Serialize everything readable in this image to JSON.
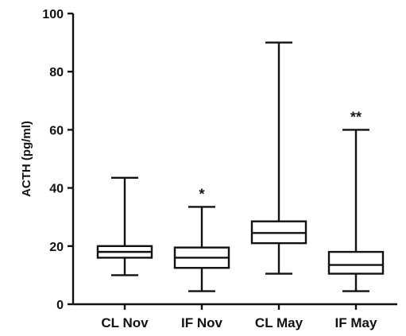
{
  "chart_data": {
    "type": "box",
    "title": "",
    "xlabel": "",
    "ylabel": "ACTH (pg/ml)",
    "ylim": [
      0,
      100
    ],
    "yticks": [
      0,
      20,
      40,
      60,
      80,
      100
    ],
    "grid": false,
    "categories": [
      "CL Nov",
      "IF Nov",
      "CL May",
      "IF May"
    ],
    "boxes": [
      {
        "category": "CL Nov",
        "min": 10,
        "q1": 16,
        "median": 18,
        "q3": 20,
        "max": 43.5,
        "annotation": ""
      },
      {
        "category": "IF Nov",
        "min": 4.5,
        "q1": 12.5,
        "median": 16,
        "q3": 19.5,
        "max": 33.5,
        "annotation": "*"
      },
      {
        "category": "CL May",
        "min": 10.5,
        "q1": 21,
        "median": 24.5,
        "q3": 28.5,
        "max": 90,
        "annotation": ""
      },
      {
        "category": "IF May",
        "min": 4.5,
        "q1": 10.5,
        "median": 13.5,
        "q3": 18,
        "max": 60,
        "annotation": "**"
      }
    ]
  }
}
